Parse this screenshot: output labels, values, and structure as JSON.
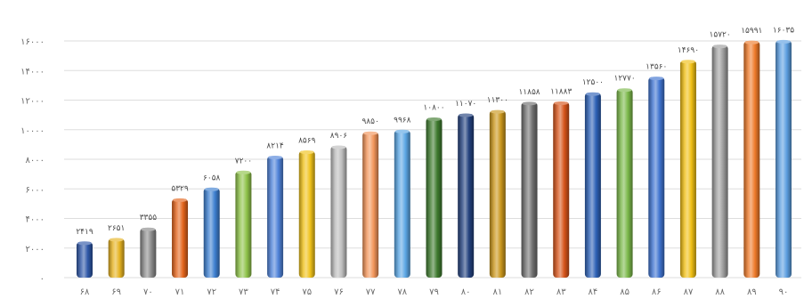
{
  "chart_data": {
    "type": "bar",
    "title": "",
    "xlabel": "",
    "ylabel": "",
    "ylim": [
      0,
      16000
    ],
    "yticks": [
      0,
      2000,
      4000,
      6000,
      8000,
      10000,
      12000,
      14000,
      16000
    ],
    "ytick_labels": [
      "۰",
      "۲۰۰۰",
      "۴۰۰۰",
      "۶۰۰۰",
      "۸۰۰۰",
      "۱۰۰۰۰",
      "۱۲۰۰۰",
      "۱۴۰۰۰",
      "۱۶۰۰۰"
    ],
    "grid": true,
    "legend": "none",
    "categories": [
      "۶۸",
      "۶۹",
      "۷۰",
      "۷۱",
      "۷۲",
      "۷۳",
      "۷۴",
      "۷۵",
      "۷۶",
      "۷۷",
      "۷۸",
      "۷۹",
      "۸۰",
      "۸۱",
      "۸۲",
      "۸۳",
      "۸۴",
      "۸۵",
      "۸۶",
      "۸۷",
      "۸۸",
      "۸۹",
      "۹۰"
    ],
    "values": [
      2419,
      2651,
      3355,
      5329,
      6058,
      7200,
      8214,
      8569,
      8906,
      9850,
      9968,
      10800,
      11070,
      11300,
      11858,
      11883,
      12500,
      12770,
      13560,
      14690,
      15720,
      15991,
      16035
    ],
    "value_labels": [
      "۲۴۱۹",
      "۲۶۵۱",
      "۳۳۵۵",
      "۵۳۲۹",
      "۶۰۵۸",
      "۷۲۰۰",
      "۸۲۱۴",
      "۸۵۶۹",
      "۸۹۰۶",
      "۹۸۵۰",
      "۹۹۶۸",
      "۱۰۸۰۰",
      "۱۱۰۷۰",
      "۱۱۳۰۰",
      "۱۱۸۵۸",
      "۱۱۸۸۳",
      "۱۲۵۰۰",
      "۱۲۷۷۰",
      "۱۳۵۶۰",
      "۱۴۶۹۰",
      "۱۵۷۲۰",
      "۱۵۹۹۱",
      "۱۶۰۳۵"
    ],
    "colors": [
      "#2f58a8",
      "#e6b321",
      "#8a8a8a",
      "#e3641c",
      "#3d7fd0",
      "#8fc34a",
      "#4f82d8",
      "#f0c21a",
      "#bcbcbc",
      "#f2955a",
      "#5ba6e4",
      "#3e7a2e",
      "#23417d",
      "#c9961c",
      "#6f6f6f",
      "#d6541a",
      "#2d61b6",
      "#7bb84a",
      "#3f73cf",
      "#f0bf14",
      "#9c9c9c",
      "#ee7a2a",
      "#5c9ee0"
    ]
  }
}
